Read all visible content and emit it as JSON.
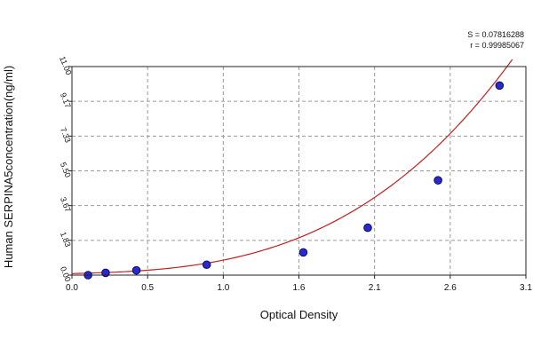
{
  "chart_data": {
    "type": "scatter",
    "title": "",
    "xlabel": "Optical Density",
    "ylabel": "Human SERPINA5concentration(ng/ml)",
    "xlim": [
      0.0,
      3.1
    ],
    "ylim": [
      0.0,
      11.0
    ],
    "x_ticks": [
      "0.0",
      "0.5",
      "1.0",
      "1.6",
      "2.1",
      "2.6",
      "3.1"
    ],
    "y_ticks": [
      "0.00",
      "1.83",
      "3.67",
      "5.50",
      "7.33",
      "9.17",
      "11.00"
    ],
    "grid": true,
    "grid_style": "dashed",
    "legend": "none",
    "stats": [
      "S = 0.07816288",
      "r = 0.99985067"
    ],
    "series": [
      {
        "points": [
          {
            "x": 0.11,
            "y": 0.0
          },
          {
            "x": 0.23,
            "y": 0.12
          },
          {
            "x": 0.44,
            "y": 0.25
          },
          {
            "x": 0.92,
            "y": 0.55
          },
          {
            "x": 1.58,
            "y": 1.2
          },
          {
            "x": 2.02,
            "y": 2.5
          },
          {
            "x": 2.5,
            "y": 5.0
          },
          {
            "x": 2.92,
            "y": 10.0
          }
        ]
      }
    ],
    "fit_curve": {
      "type": "polynomial",
      "coefficients": [
        0.08,
        0.2,
        0.1,
        0.36
      ],
      "x_range": [
        0.0,
        3.1
      ]
    },
    "colors": {
      "point_fill": "#2a2acc",
      "point_stroke": "#0a0a6e",
      "curve": "#c21f1f",
      "grid": "#9a9a9a",
      "axis": "#222222"
    }
  }
}
